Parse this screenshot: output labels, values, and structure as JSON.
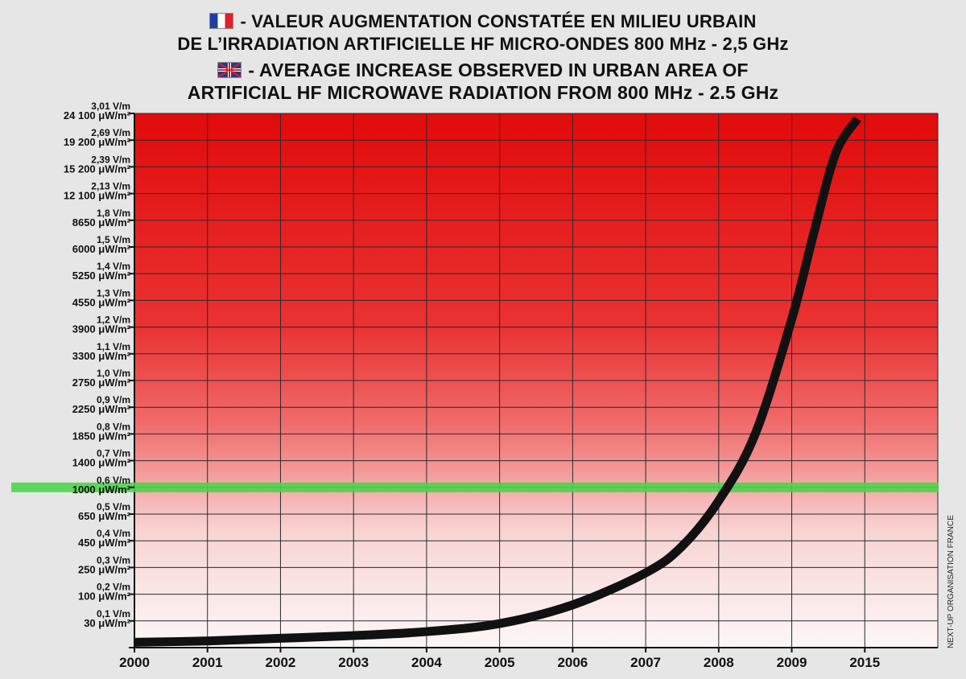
{
  "titles": {
    "fr_line1": "- VALEUR AUGMENTATION CONSTATÉE EN MILIEU URBAIN",
    "fr_line2": "DE L’IRRADIATION ARTIFICIELLE HF MICRO-ONDES 800 MHz - 2,5 GHz",
    "en_line1": "- AVERAGE INCREASE OBSERVED IN URBAN AREA OF",
    "en_line2": "ARTIFICIAL HF MICROWAVE RADIATION FROM 800 MHz - 2.5 GHz"
  },
  "icons": {
    "fr_flag": "france-flag-icon",
    "uk_flag": "uk-flag-icon"
  },
  "credit": "NEXT-UP ORGANISATION FRANCE",
  "chart_data": {
    "type": "line",
    "x_tick_labels": [
      "2000",
      "2001",
      "2002",
      "2003",
      "2004",
      "2005",
      "2006",
      "2007",
      "2008",
      "2009",
      "2015"
    ],
    "y_ticks": [
      {
        "vm": "",
        "uw": ""
      },
      {
        "vm": "0,1 V/m",
        "uw": "30 μW/m²"
      },
      {
        "vm": "0,2 V/m",
        "uw": "100 μW/m²"
      },
      {
        "vm": "0,3 V/m",
        "uw": "250 μW/m²"
      },
      {
        "vm": "0,4 V/m",
        "uw": "450 μW/m²"
      },
      {
        "vm": "0,5 V/m",
        "uw": "650 μW/m²"
      },
      {
        "vm": "0,6 V/m",
        "uw": "1000 μW/m²"
      },
      {
        "vm": "0,7 V/m",
        "uw": "1400 μW/m²"
      },
      {
        "vm": "0,8 V/m",
        "uw": "1850 μW/m²"
      },
      {
        "vm": "0,9 V/m",
        "uw": "2250 μW/m²"
      },
      {
        "vm": "1,0 V/m",
        "uw": "2750 μW/m²"
      },
      {
        "vm": "1,1 V/m",
        "uw": "3300 μW/m²"
      },
      {
        "vm": "1,2 V/m",
        "uw": "3900 μW/m²"
      },
      {
        "vm": "1,3 V/m",
        "uw": "4550 μW/m²"
      },
      {
        "vm": "1,4 V/m",
        "uw": "5250 μW/m²"
      },
      {
        "vm": "1,5 V/m",
        "uw": "6000 μW/m²"
      },
      {
        "vm": "1,8 V/m",
        "uw": "8650 μW/m²"
      },
      {
        "vm": "2,13 V/m",
        "uw": "12 100 μW/m²"
      },
      {
        "vm": "2,39 V/m",
        "uw": "15 200 μW/m²"
      },
      {
        "vm": "2,69 V/m",
        "uw": "19 200 μW/m²"
      },
      {
        "vm": "3,01 V/m",
        "uw": "24 100 μW/m²"
      }
    ],
    "threshold_tick_index": 6,
    "threshold_color": "#4cd44c",
    "curve_color": "#111111",
    "series": [
      {
        "x": [
          0,
          1,
          2,
          3,
          4,
          5,
          6,
          7,
          7.5,
          8,
          8.5,
          9,
          9.3,
          9.6,
          9.9
        ],
        "y": [
          0.2,
          0.25,
          0.35,
          0.45,
          0.6,
          0.9,
          1.6,
          2.8,
          3.8,
          5.5,
          8.0,
          12.3,
          15.5,
          18.5,
          19.8
        ]
      }
    ],
    "x_range": [
      0,
      11
    ],
    "y_range": [
      0,
      20
    ],
    "grid": true,
    "background_gradient": [
      "#fbf4f4",
      "#e30d0d"
    ]
  }
}
